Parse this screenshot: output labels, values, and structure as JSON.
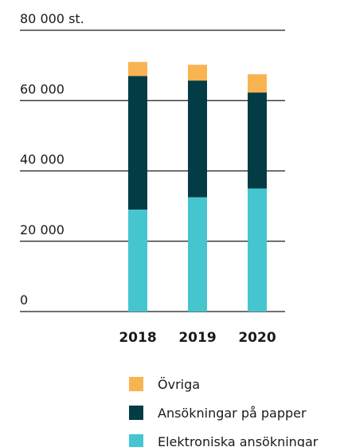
{
  "chart_data": {
    "type": "bar",
    "stacked": true,
    "categories": [
      "2018",
      "2019",
      "2020"
    ],
    "series": [
      {
        "name": "Elektroniska ansökningar",
        "color": "#45c6cf",
        "values": [
          29000,
          32500,
          35000
        ]
      },
      {
        "name": "Ansökningar på papper",
        "color": "#033c45",
        "values": [
          38000,
          33200,
          27300
        ]
      },
      {
        "name": "Övriga",
        "color": "#f9b452",
        "values": [
          4000,
          4500,
          5200
        ]
      }
    ],
    "ylim": [
      0,
      80000
    ],
    "yticks": [
      0,
      {
        "value": 20000,
        "label": "20 000"
      },
      {
        "value": 40000,
        "label": "40 000"
      },
      {
        "value": 60000,
        "label": "60 000"
      },
      {
        "value": 80000,
        "label": "80 000 st."
      }
    ],
    "grid": true
  }
}
